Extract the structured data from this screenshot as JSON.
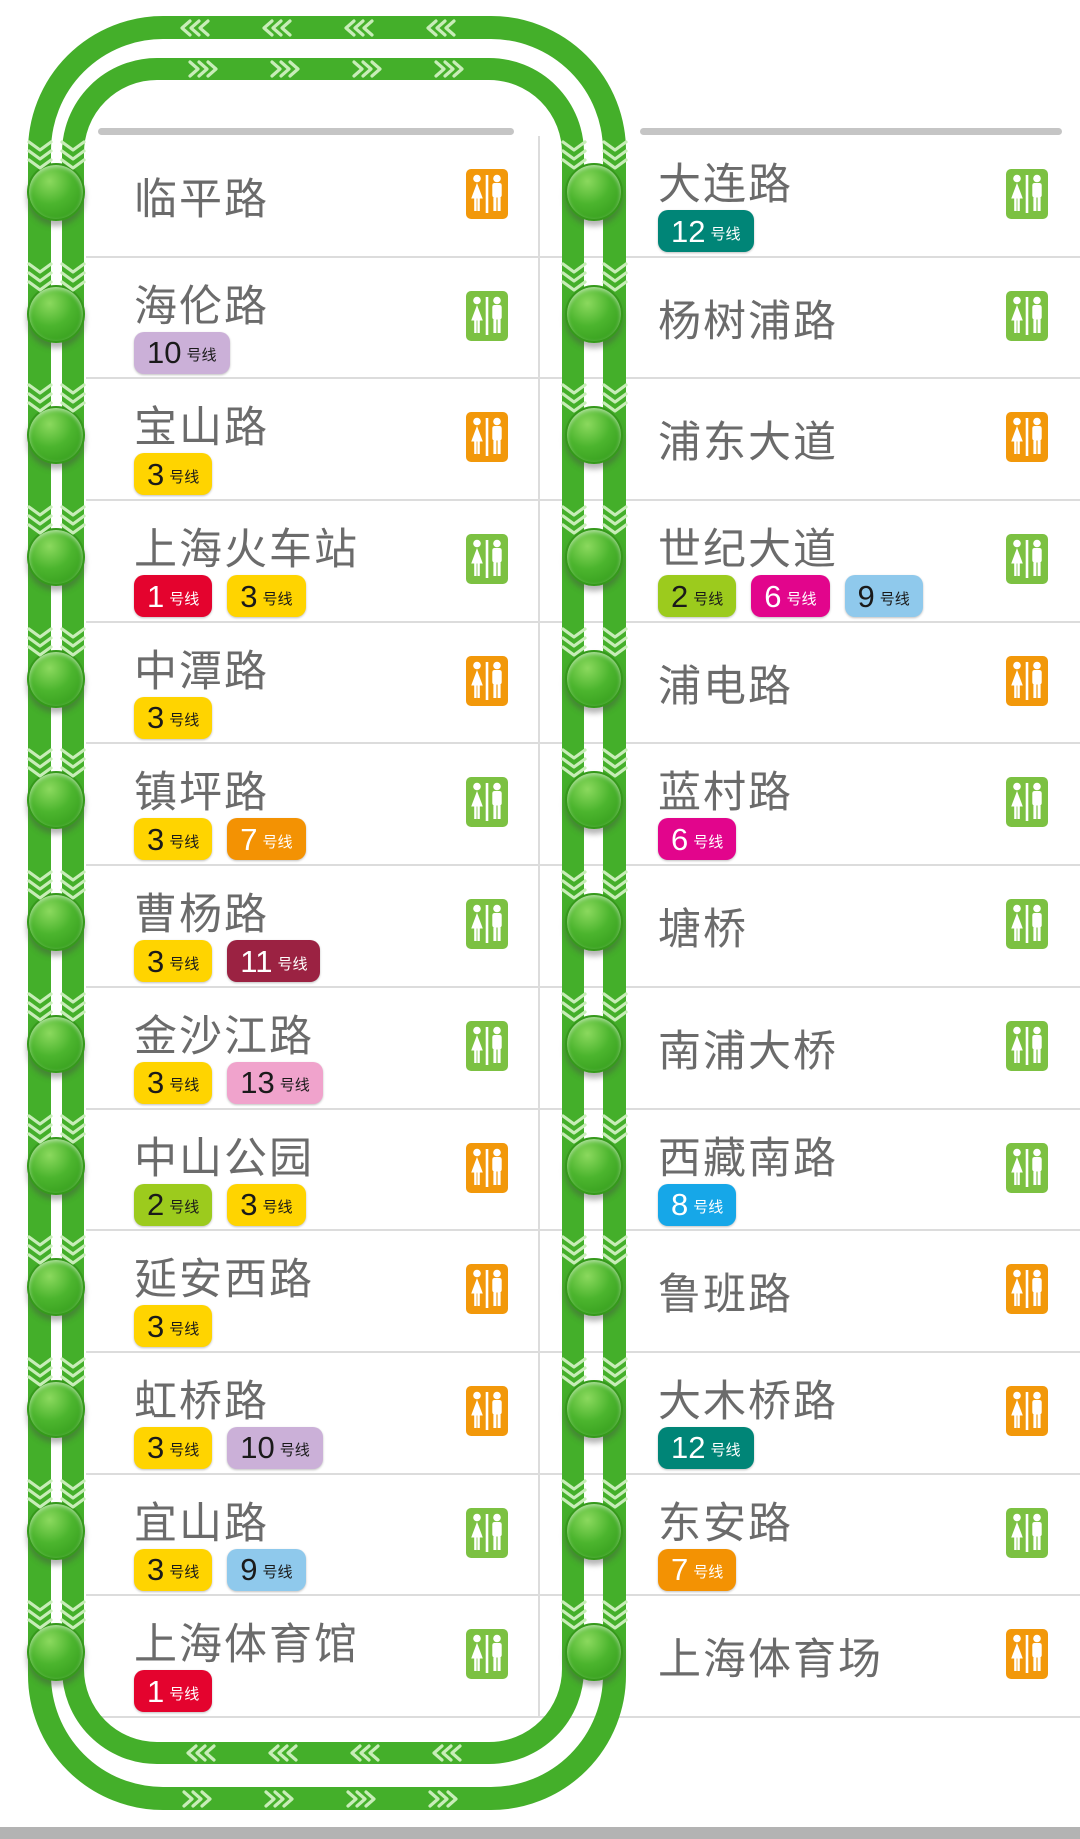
{
  "map": {
    "line_color": "#44AF2A",
    "chevron_color": "#C8EDB8",
    "node_color": "#4CB52E"
  },
  "list": {
    "badge_suffix": "号线",
    "badge_styles": {
      "1": {
        "bg": "#E4032E",
        "fg": "#FFFFFF"
      },
      "2": {
        "bg": "#9CCB1D",
        "fg": "#1A1A1A"
      },
      "3": {
        "bg": "#FFD400",
        "fg": "#1A1A1A"
      },
      "6": {
        "bg": "#E2058C",
        "fg": "#FFFFFF"
      },
      "7": {
        "bg": "#F39203",
        "fg": "#FFFFFF"
      },
      "8": {
        "bg": "#16A7E8",
        "fg": "#FFFFFF"
      },
      "9": {
        "bg": "#8FC9EC",
        "fg": "#1A1A1A"
      },
      "10": {
        "bg": "#CBB0D8",
        "fg": "#1A1A1A"
      },
      "11": {
        "bg": "#9B2242",
        "fg": "#FFFFFF"
      },
      "12": {
        "bg": "#008577",
        "fg": "#FFFFFF"
      },
      "13": {
        "bg": "#F0A3CC",
        "fg": "#1A1A1A"
      }
    },
    "toilet_colors": {
      "orange": "#F2980A",
      "green": "#7CC142"
    },
    "left_stations": [
      {
        "name": "临平路",
        "transfers": [],
        "toilet": "orange"
      },
      {
        "name": "海伦路",
        "transfers": [
          "10"
        ],
        "toilet": "green"
      },
      {
        "name": "宝山路",
        "transfers": [
          "3"
        ],
        "toilet": "orange"
      },
      {
        "name": "上海火车站",
        "transfers": [
          "1",
          "3"
        ],
        "toilet": "green"
      },
      {
        "name": "中潭路",
        "transfers": [
          "3"
        ],
        "toilet": "orange"
      },
      {
        "name": "镇坪路",
        "transfers": [
          "3",
          "7"
        ],
        "toilet": "green"
      },
      {
        "name": "曹杨路",
        "transfers": [
          "3",
          "11"
        ],
        "toilet": "green"
      },
      {
        "name": "金沙江路",
        "transfers": [
          "3",
          "13"
        ],
        "toilet": "green"
      },
      {
        "name": "中山公园",
        "transfers": [
          "2",
          "3"
        ],
        "toilet": "orange"
      },
      {
        "name": "延安西路",
        "transfers": [
          "3"
        ],
        "toilet": "orange"
      },
      {
        "name": "虹桥路",
        "transfers": [
          "3",
          "10"
        ],
        "toilet": "orange"
      },
      {
        "name": "宜山路",
        "transfers": [
          "3",
          "9"
        ],
        "toilet": "green"
      },
      {
        "name": "上海体育馆",
        "transfers": [
          "1"
        ],
        "toilet": "green"
      }
    ],
    "right_stations": [
      {
        "name": "大连路",
        "transfers": [
          "12"
        ],
        "toilet": "green"
      },
      {
        "name": "杨树浦路",
        "transfers": [],
        "toilet": "green"
      },
      {
        "name": "浦东大道",
        "transfers": [],
        "toilet": "orange"
      },
      {
        "name": "世纪大道",
        "transfers": [
          "2",
          "6",
          "9"
        ],
        "toilet": "green"
      },
      {
        "name": "浦电路",
        "transfers": [],
        "toilet": "orange"
      },
      {
        "name": "蓝村路",
        "transfers": [
          "6"
        ],
        "toilet": "green"
      },
      {
        "name": "塘桥",
        "transfers": [],
        "toilet": "green"
      },
      {
        "name": "南浦大桥",
        "transfers": [],
        "toilet": "green"
      },
      {
        "name": "西藏南路",
        "transfers": [
          "8"
        ],
        "toilet": "green"
      },
      {
        "name": "鲁班路",
        "transfers": [],
        "toilet": "orange"
      },
      {
        "name": "大木桥路",
        "transfers": [
          "12"
        ],
        "toilet": "orange"
      },
      {
        "name": "东安路",
        "transfers": [
          "7"
        ],
        "toilet": "green"
      },
      {
        "name": "上海体育场",
        "transfers": [],
        "toilet": "orange"
      }
    ]
  }
}
